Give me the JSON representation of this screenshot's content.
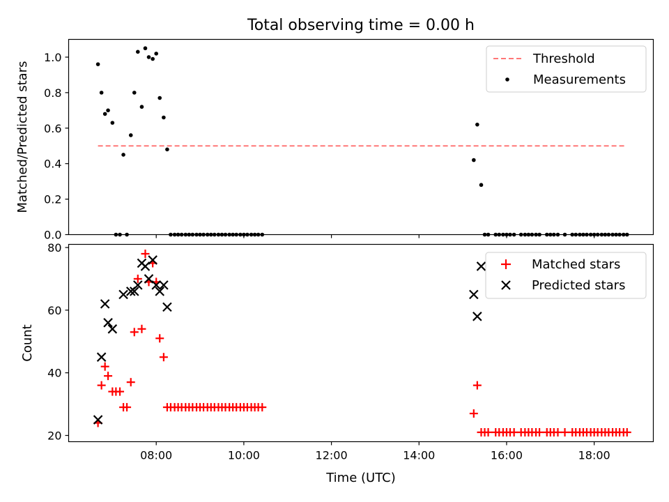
{
  "title": "Total observing time = 0.00 h",
  "chart_data": [
    {
      "type": "scatter",
      "panel": "top",
      "ylabel": "Matched/Predicted stars",
      "xlabel": "",
      "xlim": [
        6.0,
        19.35
      ],
      "ylim": [
        0.0,
        1.1
      ],
      "yticks": [
        0.0,
        0.2,
        0.4,
        0.6,
        0.8,
        1.0
      ],
      "ytick_labels": [
        "0.0",
        "0.2",
        "0.4",
        "0.6",
        "0.8",
        "1.0"
      ],
      "xticks": [
        8,
        10,
        12,
        14,
        16,
        18
      ],
      "xtick_labels_shown": false,
      "legend_position": "top-right",
      "threshold": {
        "name": "Threshold",
        "value": 0.5,
        "x_range": [
          6.67,
          18.7
        ],
        "color": "#ff7777",
        "style": "dashed"
      },
      "series": [
        {
          "name": "Measurements",
          "color": "#000000",
          "marker": "dot",
          "x": [
            6.67,
            6.75,
            6.83,
            6.9,
            7.0,
            7.08,
            7.17,
            7.25,
            7.33,
            7.42,
            7.5,
            7.58,
            7.67,
            7.75,
            7.83,
            7.92,
            8.0,
            8.08,
            8.17,
            8.25,
            8.33,
            8.42,
            8.5,
            8.58,
            8.67,
            8.75,
            8.83,
            8.92,
            9.0,
            9.08,
            9.17,
            9.25,
            9.33,
            9.42,
            9.5,
            9.58,
            9.67,
            9.75,
            9.83,
            9.92,
            10.0,
            10.08,
            10.17,
            10.25,
            10.33,
            10.42,
            15.25,
            15.33,
            15.42,
            15.5,
            15.58,
            15.75,
            15.83,
            15.92,
            16.0,
            16.08,
            16.17,
            16.33,
            16.42,
            16.5,
            16.58,
            16.67,
            16.75,
            16.92,
            17.0,
            17.08,
            17.17,
            17.33,
            17.5,
            17.58,
            17.67,
            17.75,
            17.83,
            17.92,
            18.0,
            18.08,
            18.17,
            18.25,
            18.33,
            18.42,
            18.5,
            18.58,
            18.67,
            18.75
          ],
          "y": [
            0.96,
            0.8,
            0.68,
            0.7,
            0.63,
            0.0,
            0.0,
            0.45,
            0.0,
            0.56,
            0.8,
            1.03,
            0.72,
            1.05,
            1.0,
            0.99,
            1.02,
            0.77,
            0.66,
            0.48,
            0.0,
            0.0,
            0.0,
            0.0,
            0.0,
            0.0,
            0.0,
            0.0,
            0.0,
            0.0,
            0.0,
            0.0,
            0.0,
            0.0,
            0.0,
            0.0,
            0.0,
            0.0,
            0.0,
            0.0,
            0.0,
            0.0,
            0.0,
            0.0,
            0.0,
            0.0,
            0.42,
            0.62,
            0.28,
            0.0,
            0.0,
            0.0,
            0.0,
            0.0,
            0.0,
            0.0,
            0.0,
            0.0,
            0.0,
            0.0,
            0.0,
            0.0,
            0.0,
            0.0,
            0.0,
            0.0,
            0.0,
            0.0,
            0.0,
            0.0,
            0.0,
            0.0,
            0.0,
            0.0,
            0.0,
            0.0,
            0.0,
            0.0,
            0.0,
            0.0,
            0.0,
            0.0,
            0.0,
            0.0
          ]
        }
      ]
    },
    {
      "type": "scatter",
      "panel": "bottom",
      "ylabel": "Count",
      "xlabel": "Time (UTC)",
      "xlim": [
        6.0,
        19.35
      ],
      "ylim": [
        18,
        81
      ],
      "yticks": [
        20,
        40,
        60,
        80
      ],
      "ytick_labels": [
        "20",
        "40",
        "60",
        "80"
      ],
      "xticks": [
        8,
        10,
        12,
        14,
        16,
        18
      ],
      "xtick_labels": [
        "08:00",
        "10:00",
        "12:00",
        "14:00",
        "16:00",
        "18:00"
      ],
      "legend_position": "top-right",
      "series": [
        {
          "name": "Matched stars",
          "color": "#ff0000",
          "marker": "plus",
          "x": [
            6.67,
            6.75,
            6.83,
            6.9,
            7.0,
            7.08,
            7.17,
            7.25,
            7.33,
            7.42,
            7.5,
            7.58,
            7.67,
            7.75,
            7.83,
            7.92,
            8.0,
            8.08,
            8.17,
            8.25,
            8.33,
            8.42,
            8.5,
            8.58,
            8.67,
            8.75,
            8.83,
            8.92,
            9.0,
            9.08,
            9.17,
            9.25,
            9.33,
            9.42,
            9.5,
            9.58,
            9.67,
            9.75,
            9.83,
            9.92,
            10.0,
            10.08,
            10.17,
            10.25,
            10.33,
            10.42,
            15.25,
            15.33,
            15.42,
            15.5,
            15.58,
            15.75,
            15.83,
            15.92,
            16.0,
            16.08,
            16.17,
            16.33,
            16.42,
            16.5,
            16.58,
            16.67,
            16.75,
            16.92,
            17.0,
            17.08,
            17.17,
            17.33,
            17.5,
            17.58,
            17.67,
            17.75,
            17.83,
            17.92,
            18.0,
            18.08,
            18.17,
            18.25,
            18.33,
            18.42,
            18.5,
            18.58,
            18.67,
            18.75
          ],
          "y": [
            24,
            36,
            42,
            39,
            34,
            34,
            34,
            29,
            29,
            37,
            53,
            70,
            54,
            78,
            69,
            75,
            69,
            51,
            45,
            29,
            29,
            29,
            29,
            29,
            29,
            29,
            29,
            29,
            29,
            29,
            29,
            29,
            29,
            29,
            29,
            29,
            29,
            29,
            29,
            29,
            29,
            29,
            29,
            29,
            29,
            29,
            27,
            36,
            21,
            21,
            21,
            21,
            21,
            21,
            21,
            21,
            21,
            21,
            21,
            21,
            21,
            21,
            21,
            21,
            21,
            21,
            21,
            21,
            21,
            21,
            21,
            21,
            21,
            21,
            21,
            21,
            21,
            21,
            21,
            21,
            21,
            21,
            21,
            21
          ]
        },
        {
          "name": "Predicted stars",
          "color": "#000000",
          "marker": "x",
          "x": [
            6.67,
            6.75,
            6.83,
            6.9,
            7.0,
            7.25,
            7.42,
            7.5,
            7.58,
            7.67,
            7.75,
            7.83,
            7.92,
            8.0,
            8.08,
            8.17,
            8.25,
            15.25,
            15.33,
            15.42
          ],
          "y": [
            25,
            45,
            62,
            56,
            54,
            65,
            66,
            66,
            68,
            75,
            74,
            70,
            76,
            68,
            66,
            68,
            61,
            65,
            58,
            74
          ]
        }
      ]
    }
  ]
}
